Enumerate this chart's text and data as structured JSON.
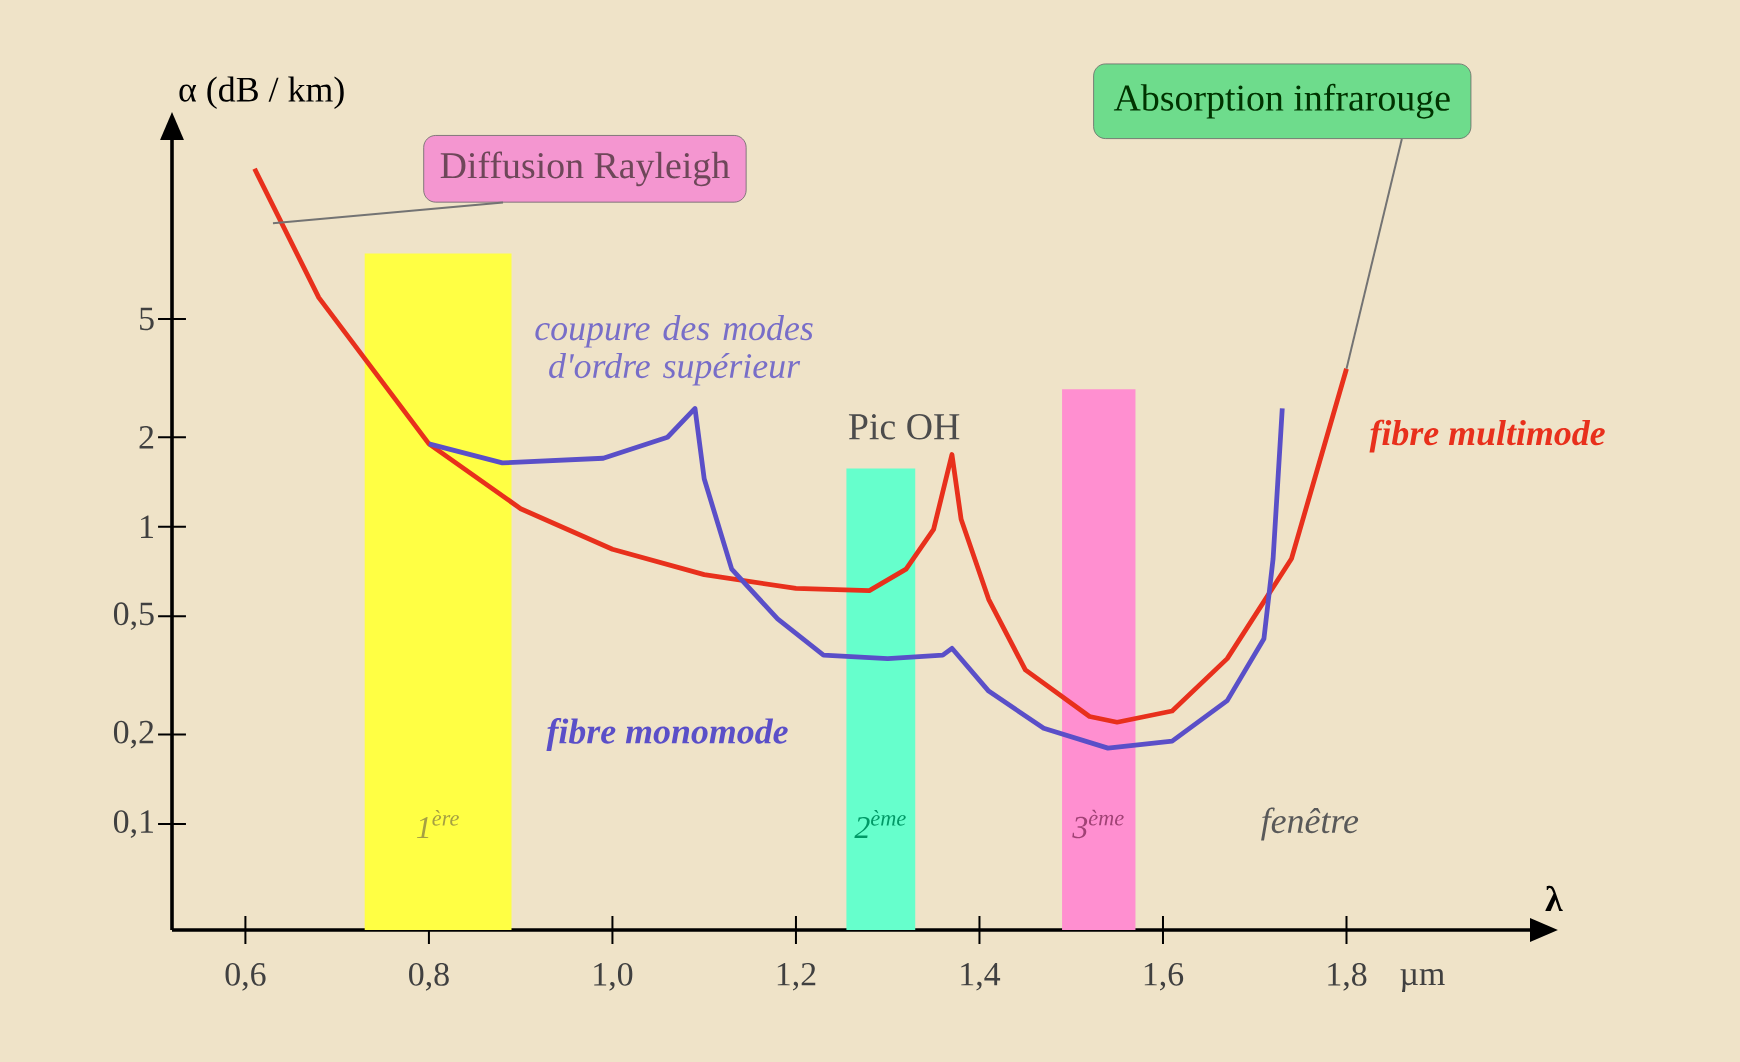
{
  "chart_data": {
    "type": "line",
    "ylabel": "α (dB / km)",
    "xlabel": "λ",
    "log": "y",
    "marker": "none",
    "xlim": [
      0.52,
      2.0
    ],
    "ylim": [
      0.044,
      20
    ],
    "xticks": [
      {
        "value": 0.6,
        "label": "0,6"
      },
      {
        "value": 0.8,
        "label": "0,8"
      },
      {
        "value": 1.0,
        "label": "1,0"
      },
      {
        "value": 1.2,
        "label": "1,2"
      },
      {
        "value": 1.4,
        "label": "1,4"
      },
      {
        "value": 1.6,
        "label": "1,6"
      },
      {
        "value": 1.8,
        "label": "1,8"
      }
    ],
    "yticks": [
      {
        "value": 0.1,
        "label": "0,1"
      },
      {
        "value": 0.2,
        "label": "0,2"
      },
      {
        "value": 0.5,
        "label": "0,5"
      },
      1,
      2,
      5
    ],
    "series": [
      {
        "name": "fibre multimode",
        "color": "#e8301c",
        "x": [
          0.61,
          0.68,
          0.8,
          0.9,
          1.0,
          1.1,
          1.2,
          1.28,
          1.32,
          1.35,
          1.37,
          1.38,
          1.41,
          1.45,
          1.52,
          1.55,
          1.61,
          1.67,
          1.74,
          1.8
        ],
        "values": [
          16,
          5.9,
          1.9,
          1.15,
          0.84,
          0.69,
          0.62,
          0.61,
          0.72,
          0.98,
          1.75,
          1.06,
          0.57,
          0.33,
          0.23,
          0.22,
          0.24,
          0.36,
          0.78,
          3.4
        ]
      },
      {
        "name": "fibre monomode",
        "color": "#5a4fc8",
        "x": [
          0.8,
          0.88,
          0.99,
          1.06,
          1.09,
          1.1,
          1.13,
          1.18,
          1.23,
          1.3,
          1.36,
          1.37,
          1.41,
          1.47,
          1.54,
          1.61,
          1.67,
          1.71,
          1.72,
          1.73
        ],
        "values": [
          1.9,
          1.64,
          1.7,
          2.0,
          2.5,
          1.45,
          0.72,
          0.49,
          0.37,
          0.36,
          0.37,
          0.39,
          0.28,
          0.21,
          0.18,
          0.19,
          0.26,
          0.42,
          0.78,
          2.5
        ]
      }
    ],
    "bands": [
      {
        "axis": "x",
        "from": 0.73,
        "to": 0.89,
        "label": "1$^{ère}$",
        "color": "#ffff44"
      },
      {
        "axis": "x",
        "from": 1.255,
        "to": 1.33,
        "label": "2$^{ème}$",
        "color": "#66ffcc"
      },
      {
        "axis": "x",
        "from": 1.49,
        "to": 1.57,
        "label": "3$^{ème}$",
        "color": "#ff8fd0"
      }
    ],
    "annotations": [
      {
        "text": "Diffusion Rayleigh",
        "x": 0.63,
        "y": 10.5
      },
      {
        "text": "Absorption infrarouge",
        "x": 1.8,
        "y": 3.4
      },
      {
        "text": "coupure des modes d'ordre supérieur",
        "x": 1.09,
        "y": 2.5
      },
      {
        "text": "Pic OH",
        "x": 1.37,
        "y": 1.75
      },
      "fenêtre",
      "µm"
    ]
  }
}
